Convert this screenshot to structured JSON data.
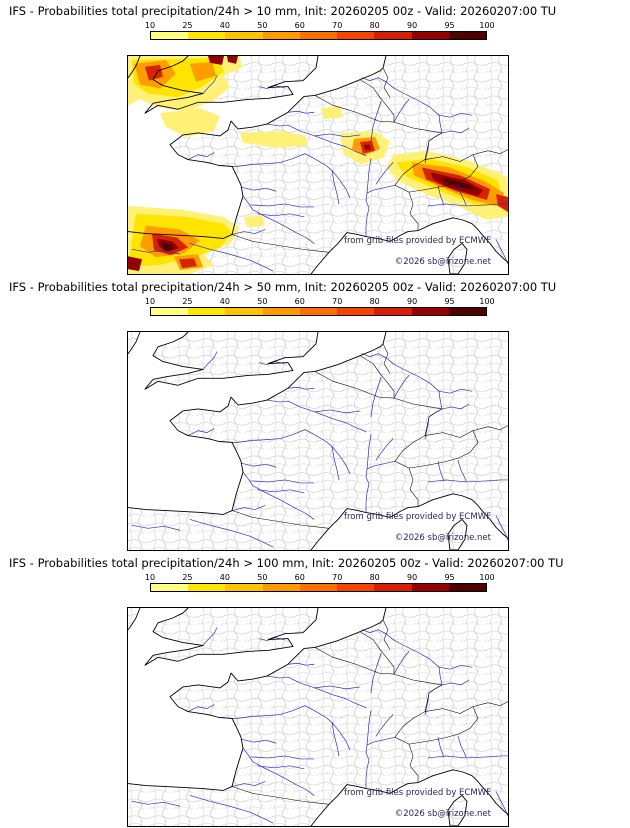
{
  "panels": [
    {
      "id": "10mm",
      "title": "IFS - Probabilities total precipitation/24h > 10 mm, Init: 20260205 00z - Valid: 20260207:00 TU"
    },
    {
      "id": "50mm",
      "title": "IFS - Probabilities total precipitation/24h > 50 mm, Init: 20260205 00z - Valid: 20260207:00 TU"
    },
    {
      "id": "100mm",
      "title": "IFS - Probabilities total precipitation/24h > 100 mm, Init: 20260205 00z - Valid: 20260207:00 TU"
    }
  ],
  "scale": {
    "ticks": [
      "10",
      "25",
      "40",
      "50",
      "60",
      "70",
      "80",
      "90",
      "95",
      "100"
    ],
    "colors": [
      "#ffff80",
      "#ffe800",
      "#ffc300",
      "#ff9b00",
      "#ff6e00",
      "#f74300",
      "#d61e00",
      "#970000",
      "#4f0000"
    ]
  },
  "watermark": {
    "line1": "from grib files provided by ECMWF",
    "line2": "©2026 sb@irizone.net"
  },
  "map_colors": {
    "river": "#2b2bd0",
    "coastline": "#000000",
    "admin_boundaries": "#c2c2c2",
    "sea": "#ffffff"
  }
}
